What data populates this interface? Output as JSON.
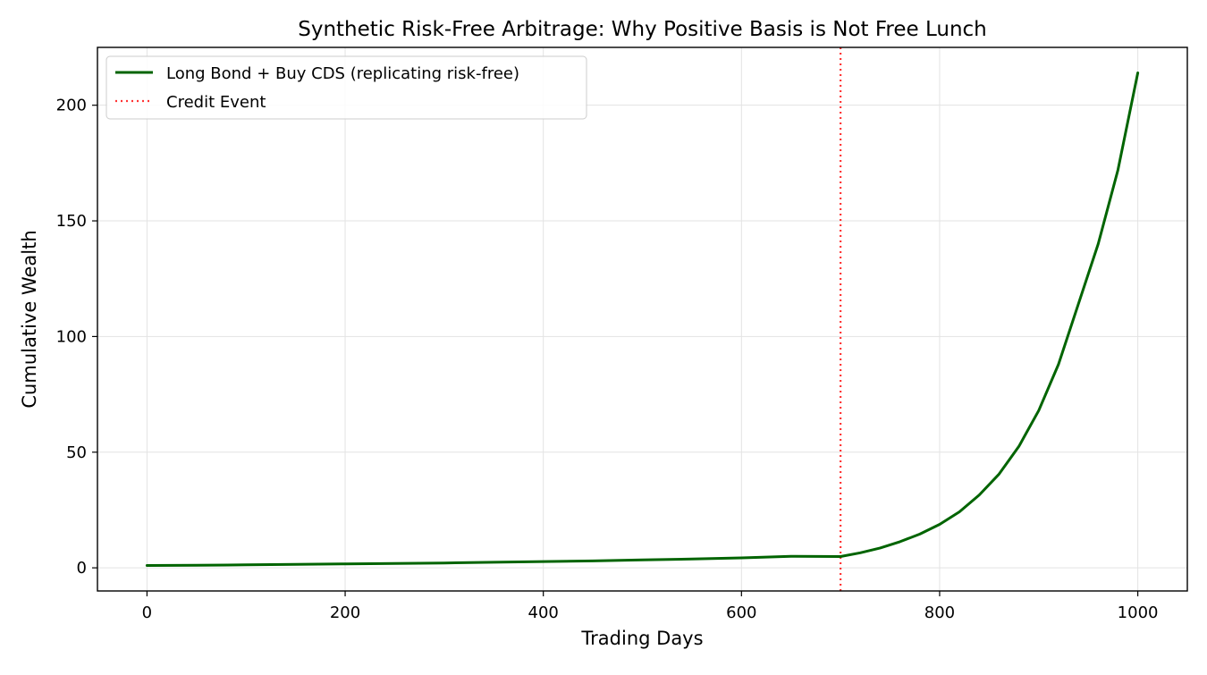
{
  "chart_data": {
    "type": "line",
    "title": "Synthetic Risk-Free Arbitrage: Why Positive Basis is Not Free Lunch",
    "xlabel": "Trading Days",
    "ylabel": "Cumulative Wealth",
    "xlim": [
      -50,
      1050
    ],
    "ylim": [
      -10,
      225
    ],
    "xticks": [
      0,
      200,
      400,
      600,
      800,
      1000
    ],
    "yticks": [
      0,
      50,
      100,
      150,
      200
    ],
    "grid": true,
    "legend_position": "top-left",
    "series": [
      {
        "name": "Long Bond + Buy CDS (replicating risk-free)",
        "color": "#006400",
        "style": "solid",
        "x": [
          0,
          50,
          100,
          150,
          200,
          250,
          300,
          350,
          400,
          450,
          500,
          550,
          600,
          650,
          700,
          720,
          740,
          760,
          780,
          800,
          820,
          840,
          860,
          880,
          900,
          920,
          940,
          960,
          980,
          1000
        ],
        "y": [
          1.0,
          1.1,
          1.3,
          1.5,
          1.7,
          1.9,
          2.1,
          2.4,
          2.7,
          3.0,
          3.4,
          3.8,
          4.3,
          5.0,
          4.9,
          6.5,
          8.6,
          11.3,
          14.6,
          18.8,
          24.2,
          31.5,
          40.5,
          52.5,
          68.0,
          88.0,
          114.0,
          140.0,
          172.0,
          214.0
        ]
      }
    ],
    "annotations": [
      {
        "type": "vline",
        "x": 700,
        "name": "Credit Event",
        "color": "#ff0000",
        "style": "dotted"
      }
    ]
  }
}
